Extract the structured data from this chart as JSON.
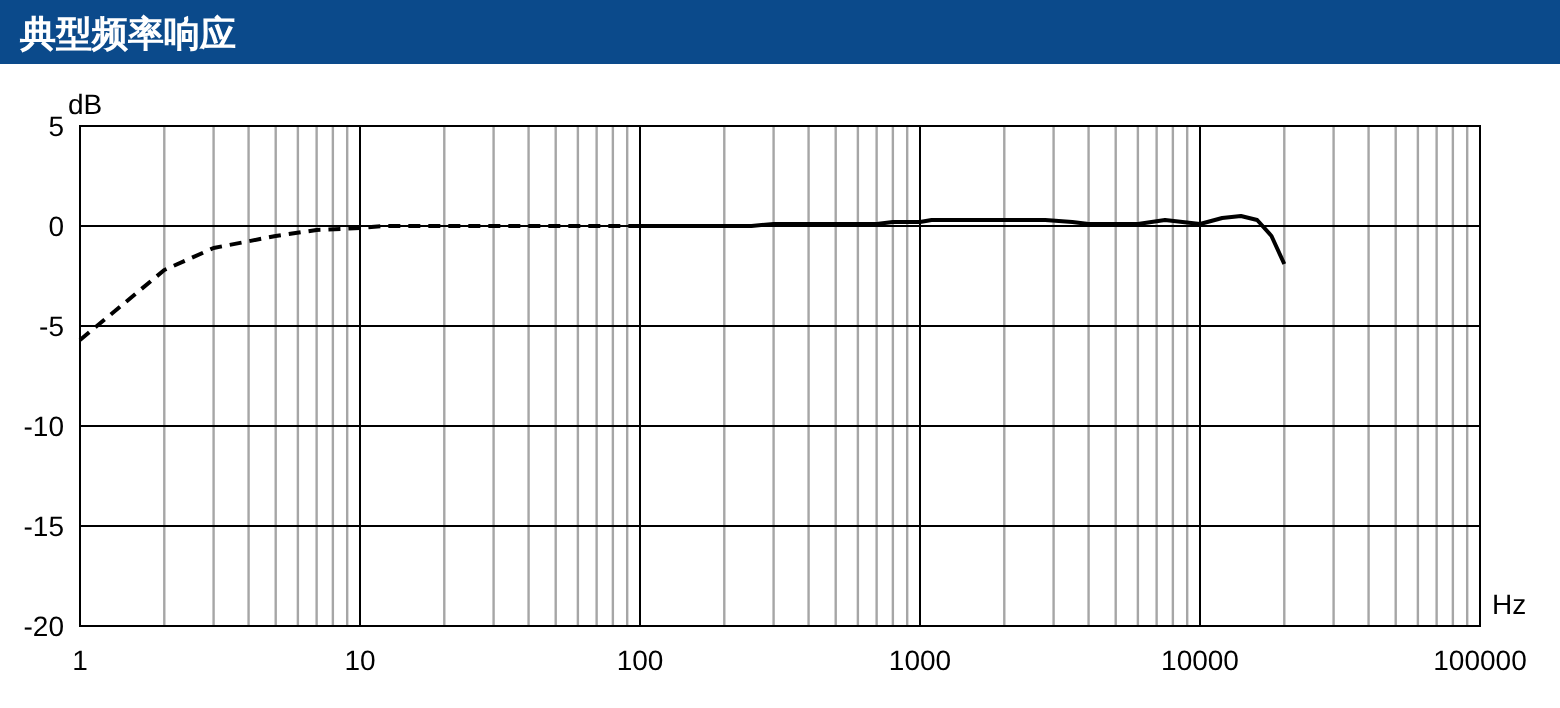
{
  "chart_data": {
    "type": "line",
    "title": "典型频率响应",
    "xlabel": "Hz",
    "ylabel": "dB",
    "log": "x",
    "grid": true,
    "xlim": [
      1,
      100000
    ],
    "ylim": [
      -20,
      5
    ],
    "xticks": [
      1,
      {
        "value": 2,
        "label": null
      },
      {
        "value": 3,
        "label": null
      },
      {
        "value": 4,
        "label": null
      },
      {
        "value": 5,
        "label": null
      },
      {
        "value": 6,
        "label": null
      },
      {
        "value": 7,
        "label": null
      },
      {
        "value": 8,
        "label": null
      },
      {
        "value": 9,
        "label": null
      },
      10,
      {
        "value": 20,
        "label": null
      },
      {
        "value": 30,
        "label": null
      },
      {
        "value": 40,
        "label": null
      },
      {
        "value": 50,
        "label": null
      },
      {
        "value": 60,
        "label": null
      },
      {
        "value": 70,
        "label": null
      },
      {
        "value": 80,
        "label": null
      },
      {
        "value": 90,
        "label": null
      },
      100,
      {
        "value": 200,
        "label": null
      },
      {
        "value": 300,
        "label": null
      },
      {
        "value": 400,
        "label": null
      },
      {
        "value": 500,
        "label": null
      },
      {
        "value": 600,
        "label": null
      },
      {
        "value": 700,
        "label": null
      },
      {
        "value": 800,
        "label": null
      },
      {
        "value": 900,
        "label": null
      },
      1000,
      {
        "value": 2000,
        "label": null
      },
      {
        "value": 3000,
        "label": null
      },
      {
        "value": 4000,
        "label": null
      },
      {
        "value": 5000,
        "label": null
      },
      {
        "value": 6000,
        "label": null
      },
      {
        "value": 7000,
        "label": null
      },
      {
        "value": 8000,
        "label": null
      },
      {
        "value": 9000,
        "label": null
      },
      10000,
      {
        "value": 20000,
        "label": null
      },
      {
        "value": 30000,
        "label": null
      },
      {
        "value": 40000,
        "label": null
      },
      {
        "value": 50000,
        "label": null
      },
      {
        "value": 60000,
        "label": null
      },
      {
        "value": 70000,
        "label": null
      },
      {
        "value": 80000,
        "label": null
      },
      {
        "value": 90000,
        "label": null
      },
      100000
    ],
    "yticks": [
      -20,
      -15,
      -10,
      -5,
      0,
      5
    ],
    "series": [
      {
        "color": "#000000",
        "line_style": "dashed",
        "x": [
          1,
          2,
          3,
          5,
          7,
          10,
          12,
          20,
          50,
          100
        ],
        "values": [
          -5.7,
          -2.2,
          -1.1,
          -0.5,
          -0.2,
          -0.1,
          0,
          0,
          0,
          0
        ]
      },
      {
        "color": "#000000",
        "line_style": "solid",
        "x": [
          100,
          250,
          300,
          700,
          800,
          1000,
          1100,
          2800,
          3500,
          4000,
          6000,
          7500,
          10000,
          12000,
          14000,
          16000,
          18000,
          20000
        ],
        "values": [
          0,
          0,
          0.1,
          0.1,
          0.2,
          0.2,
          0.3,
          0.3,
          0.2,
          0.1,
          0.1,
          0.3,
          0.1,
          0.4,
          0.5,
          0.3,
          -0.5,
          -1.9
        ]
      }
    ]
  }
}
